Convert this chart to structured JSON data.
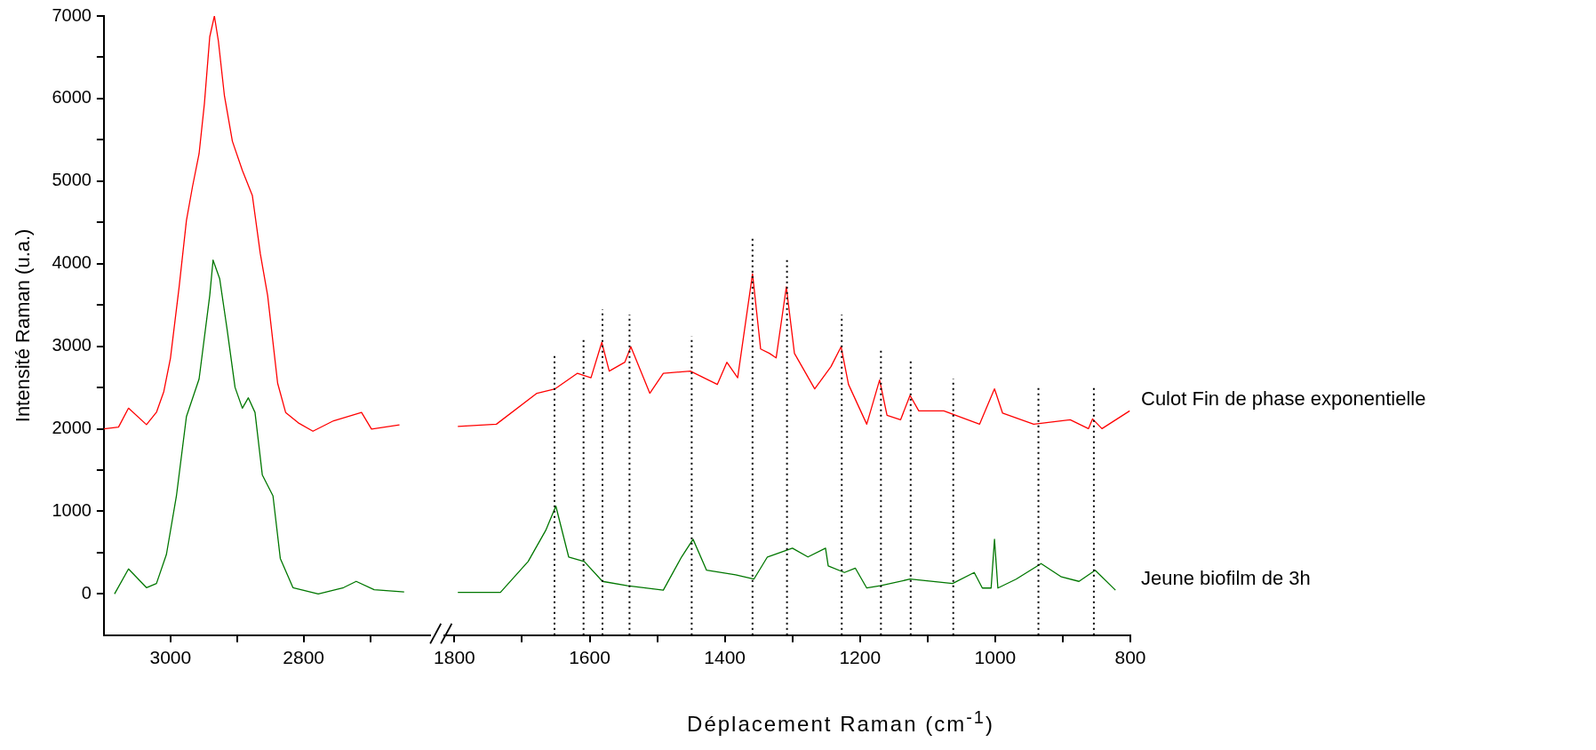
{
  "chart_data": [
    {
      "type": "line",
      "ylabel": "Intensité Raman (u.a.)",
      "xlim": [
        3100,
        2610
      ],
      "xticks": [
        3000,
        {
          "value": 2900,
          "label": null
        },
        2800,
        {
          "value": 2700,
          "label": null
        }
      ],
      "ylim": [
        -500,
        7000
      ],
      "yticks": [
        0,
        {
          "value": 500,
          "label": null
        },
        1000,
        {
          "value": 1500,
          "label": null
        },
        2000,
        {
          "value": 2500,
          "label": null
        },
        3000,
        {
          "value": 3500,
          "label": null
        },
        4000,
        {
          "value": 4500,
          "label": null
        },
        5000,
        {
          "value": 5500,
          "label": null
        },
        6000,
        {
          "value": 6500,
          "label": null
        },
        7000
      ],
      "series": [
        {
          "color": "#ff0000",
          "x": [
            3100,
            3078,
            3063,
            3036,
            3021,
            3010,
            3000,
            2987,
            2976,
            2967,
            2957,
            2949,
            2941,
            2934,
            2928,
            2919,
            2907,
            2892,
            2877,
            2865,
            2854,
            2839,
            2827,
            2808,
            2786,
            2755,
            2713,
            2698,
            2656
          ],
          "values": [
            2000,
            2020,
            2250,
            2050,
            2200,
            2450,
            2855,
            3715,
            4523,
            4928,
            5332,
            5938,
            6747,
            7000,
            6696,
            6039,
            5484,
            5130,
            4827,
            4119,
            3614,
            2552,
            2198,
            2072,
            1971,
            2097,
            2198,
            1996,
            2047
          ]
        },
        {
          "color": "#007700",
          "x": [
            3084,
            3063,
            3036,
            3021,
            3006,
            2991,
            2976,
            2957,
            2941,
            2936,
            2926,
            2915,
            2903,
            2892,
            2883,
            2873,
            2862,
            2846,
            2835,
            2816,
            2778,
            2740,
            2721,
            2694,
            2649
          ],
          "values": [
            0,
            303,
            76,
            126,
            480,
            1188,
            2148,
            2603,
            3614,
            4043,
            3816,
            3209,
            2502,
            2249,
            2375,
            2198,
            1440,
            1188,
            430,
            76,
            0,
            76,
            152,
            50,
            25
          ]
        }
      ]
    },
    {
      "type": "line",
      "xlabel": "Déplacement Raman (cm$^{-1}$)",
      "tick_labels": "x",
      "xlim": [
        1815,
        800
      ],
      "xticks": [
        1800,
        {
          "value": 1700,
          "label": null
        },
        1600,
        {
          "value": 1500,
          "label": null
        },
        1400,
        {
          "value": 1300,
          "label": null
        },
        1200,
        {
          "value": 1100,
          "label": null
        },
        1000,
        {
          "value": 900,
          "label": null
        },
        800
      ],
      "ylim": [
        -500,
        7000
      ],
      "yticks": [
        0,
        1000,
        2000,
        3000,
        4000,
        5000,
        6000,
        7000
      ],
      "series": [
        {
          "name": "Culot Fin de phase exponentielle",
          "color": "#ff0000",
          "x": [
            1795,
            1738,
            1678,
            1651,
            1618,
            1598,
            1582,
            1571,
            1548,
            1539,
            1511,
            1491,
            1451,
            1411,
            1397,
            1381,
            1359,
            1347,
            1334,
            1324,
            1309,
            1297,
            1267,
            1243,
            1228,
            1217,
            1190,
            1171,
            1160,
            1140,
            1126,
            1113,
            1076,
            1023,
            1001,
            989,
            943,
            889,
            862,
            856,
            842,
            801
          ],
          "values": [
            2014,
            2041,
            2414,
            2467,
            2654,
            2600,
            3027,
            2680,
            2787,
            2974,
            2414,
            2654,
            2680,
            2520,
            2787,
            2600,
            3853,
            2947,
            2894,
            2840,
            3693,
            2894,
            2467,
            2734,
            2974,
            2520,
            2041,
            2574,
            2147,
            2094,
            2387,
            2201,
            2201,
            2041,
            2467,
            2174,
            2041,
            2094,
            1987,
            2105,
            1987,
            2201
          ]
        },
        {
          "name": "Jeune biofilm de 3h",
          "color": "#007700",
          "x": [
            1795,
            1732,
            1691,
            1665,
            1650,
            1631,
            1608,
            1581,
            1544,
            1491,
            1464,
            1447,
            1427,
            1384,
            1357,
            1337,
            1300,
            1277,
            1251,
            1247,
            1223,
            1207,
            1190,
            1170,
            1126,
            1063,
            1031,
            1019,
            1006,
            1001,
            996,
            969,
            932,
            902,
            876,
            852,
            822
          ],
          "values": [
            15,
            15,
            388,
            762,
            1055,
            442,
            388,
            148,
            95,
            42,
            442,
            655,
            282,
            228,
            175,
            442,
            548,
            442,
            548,
            335,
            255,
            308,
            68,
            95,
            175,
            122,
            255,
            68,
            68,
            655,
            68,
            175,
            362,
            202,
            148,
            282,
            42
          ]
        }
      ],
      "ref_lines": [
        {
          "axis": "x",
          "value": 1652,
          "line_style": "dotted",
          "color": "#000000"
        },
        {
          "axis": "x",
          "value": 1609,
          "line_style": "dotted",
          "color": "#000000"
        },
        {
          "axis": "x",
          "value": 1581,
          "line_style": "dotted",
          "color": "#000000"
        },
        {
          "axis": "x",
          "value": 1541,
          "line_style": "dotted",
          "color": "#000000"
        },
        {
          "axis": "x",
          "value": 1449,
          "line_style": "dotted",
          "color": "#000000"
        },
        {
          "axis": "x",
          "value": 1359,
          "line_style": "dotted",
          "color": "#000000"
        },
        {
          "axis": "x",
          "value": 1308,
          "line_style": "dotted",
          "color": "#000000"
        },
        {
          "axis": "x",
          "value": 1227,
          "line_style": "dotted",
          "color": "#000000"
        },
        {
          "axis": "x",
          "value": 1169,
          "line_style": "dotted",
          "color": "#000000"
        },
        {
          "axis": "x",
          "value": 1125,
          "line_style": "dotted",
          "color": "#000000"
        },
        {
          "axis": "x",
          "value": 1062,
          "line_style": "dotted",
          "color": "#000000"
        },
        {
          "axis": "x",
          "value": 936,
          "line_style": "dotted",
          "color": "#000000"
        },
        {
          "axis": "x",
          "value": 854,
          "line_style": "dotted",
          "color": "#000000"
        }
      ]
    }
  ]
}
